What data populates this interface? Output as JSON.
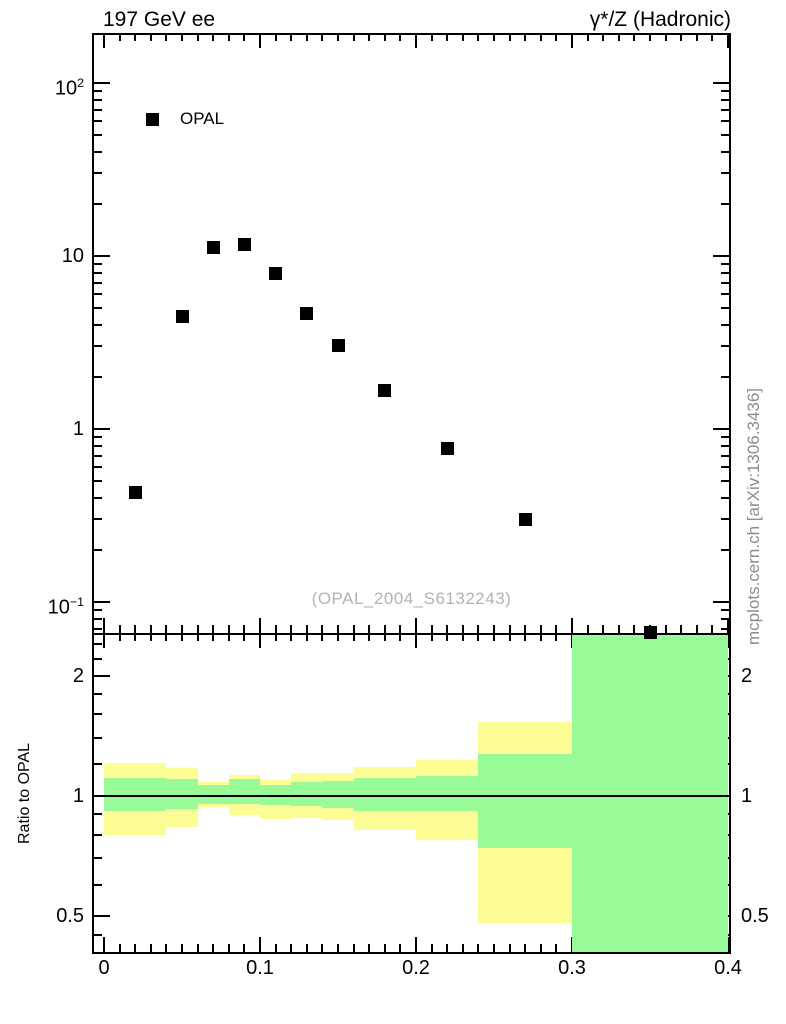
{
  "header": {
    "left_title": "197 GeV ee",
    "right_title": "γ*/Z (Hadronic)"
  },
  "legend": {
    "label": "OPAL",
    "marker": "filled-square",
    "marker_color": "#000000"
  },
  "watermark": "(OPAL_2004_S6132243)",
  "side_note": "mcplots.cern.ch [arXiv:1306.3436]",
  "colors": {
    "band_outer_yellow": "#fdfd96",
    "band_inner_green": "#98fb98",
    "marker_black": "#000000",
    "credit_gray": "#8c8c8c",
    "watermark_gray": "#b3b3b3"
  },
  "chart_data": {
    "type": "scatter",
    "title": "197 GeV ee — γ*/Z (Hadronic)",
    "xlabel": "",
    "ylabel": "",
    "x_axis": {
      "range_min": 0,
      "range_max": 0.4,
      "frame_min": -0.0077,
      "frame_max": 0.4019,
      "major_ticks": [
        0,
        0.1,
        0.2,
        0.3,
        0.4
      ],
      "major_tick_labels": [
        "0",
        "0.1",
        "0.2",
        "0.3",
        "0.4"
      ],
      "minor_tick_step": 0.01
    },
    "main_panel": {
      "y_scale": "log",
      "frame_min": 0.0662,
      "frame_max": 194.6,
      "major_ticks": [
        0.1,
        1,
        10,
        100
      ],
      "major_tick_labels": [
        "10^−1",
        "1",
        "10",
        "10^2"
      ],
      "minor_ticks": [
        0.07,
        0.08,
        0.09,
        0.2,
        0.3,
        0.4,
        0.5,
        0.6,
        0.7,
        0.8,
        0.9,
        2,
        3,
        4,
        5,
        6,
        7,
        8,
        9,
        20,
        30,
        40,
        50,
        60,
        70,
        80,
        90
      ],
      "grid": false,
      "series": [
        {
          "name": "OPAL",
          "marker": "filled-square",
          "color": "#000000",
          "points": [
            [
              0.02,
              0.43
            ],
            [
              0.05,
              4.5
            ],
            [
              0.07,
              11.2
            ],
            [
              0.09,
              11.7
            ],
            [
              0.11,
              7.9
            ],
            [
              0.13,
              4.65
            ],
            [
              0.15,
              3.05
            ],
            [
              0.18,
              1.68
            ],
            [
              0.22,
              0.77
            ],
            [
              0.27,
              0.3
            ],
            [
              0.35,
              0.067
            ]
          ]
        }
      ]
    },
    "ratio_panel": {
      "y_label": "Ratio to OPAL",
      "y_scale": "log",
      "frame_min": 0.407,
      "frame_max": 2.557,
      "major_ticks": [
        0.5,
        1,
        2
      ],
      "major_tick_labels": [
        "0.5",
        "1",
        "2"
      ],
      "minor_ticks": [
        0.45,
        0.6,
        0.7,
        0.8,
        0.9,
        1.2,
        1.4,
        1.6,
        1.8,
        2.2,
        2.4
      ],
      "reference_line": 1,
      "legend_right_labels": true,
      "bands": [
        {
          "x_lo": 0.0,
          "x_hi": 0.04,
          "outer_lo": 0.8,
          "outer_hi": 1.21,
          "inner_lo": 0.915,
          "inner_hi": 1.11
        },
        {
          "x_lo": 0.04,
          "x_hi": 0.06,
          "outer_lo": 0.835,
          "outer_hi": 1.175,
          "inner_lo": 0.93,
          "inner_hi": 1.105
        },
        {
          "x_lo": 0.06,
          "x_hi": 0.08,
          "outer_lo": 0.937,
          "outer_hi": 1.084,
          "inner_lo": 0.955,
          "inner_hi": 1.063
        },
        {
          "x_lo": 0.08,
          "x_hi": 0.1,
          "outer_lo": 0.895,
          "outer_hi": 1.13,
          "inner_lo": 0.957,
          "inner_hi": 1.105
        },
        {
          "x_lo": 0.1,
          "x_hi": 0.12,
          "outer_lo": 0.878,
          "outer_hi": 1.098,
          "inner_lo": 0.951,
          "inner_hi": 1.067
        },
        {
          "x_lo": 0.12,
          "x_hi": 0.14,
          "outer_lo": 0.881,
          "outer_hi": 1.142,
          "inner_lo": 0.942,
          "inner_hi": 1.084
        },
        {
          "x_lo": 0.14,
          "x_hi": 0.16,
          "outer_lo": 0.872,
          "outer_hi": 1.142,
          "inner_lo": 0.933,
          "inner_hi": 1.092
        },
        {
          "x_lo": 0.16,
          "x_hi": 0.2,
          "outer_lo": 0.821,
          "outer_hi": 1.179,
          "inner_lo": 0.919,
          "inner_hi": 1.109
        },
        {
          "x_lo": 0.2,
          "x_hi": 0.24,
          "outer_lo": 0.778,
          "outer_hi": 1.232,
          "inner_lo": 0.915,
          "inner_hi": 1.12
        },
        {
          "x_lo": 0.24,
          "x_hi": 0.3,
          "outer_lo": 0.481,
          "outer_hi": 1.528,
          "inner_lo": 0.741,
          "inner_hi": 1.273
        },
        {
          "x_lo": 0.3,
          "x_hi": 0.4,
          "outer_lo": 0.38,
          "outer_hi": 2.6,
          "inner_lo": 0.38,
          "inner_hi": 2.6
        }
      ]
    }
  }
}
